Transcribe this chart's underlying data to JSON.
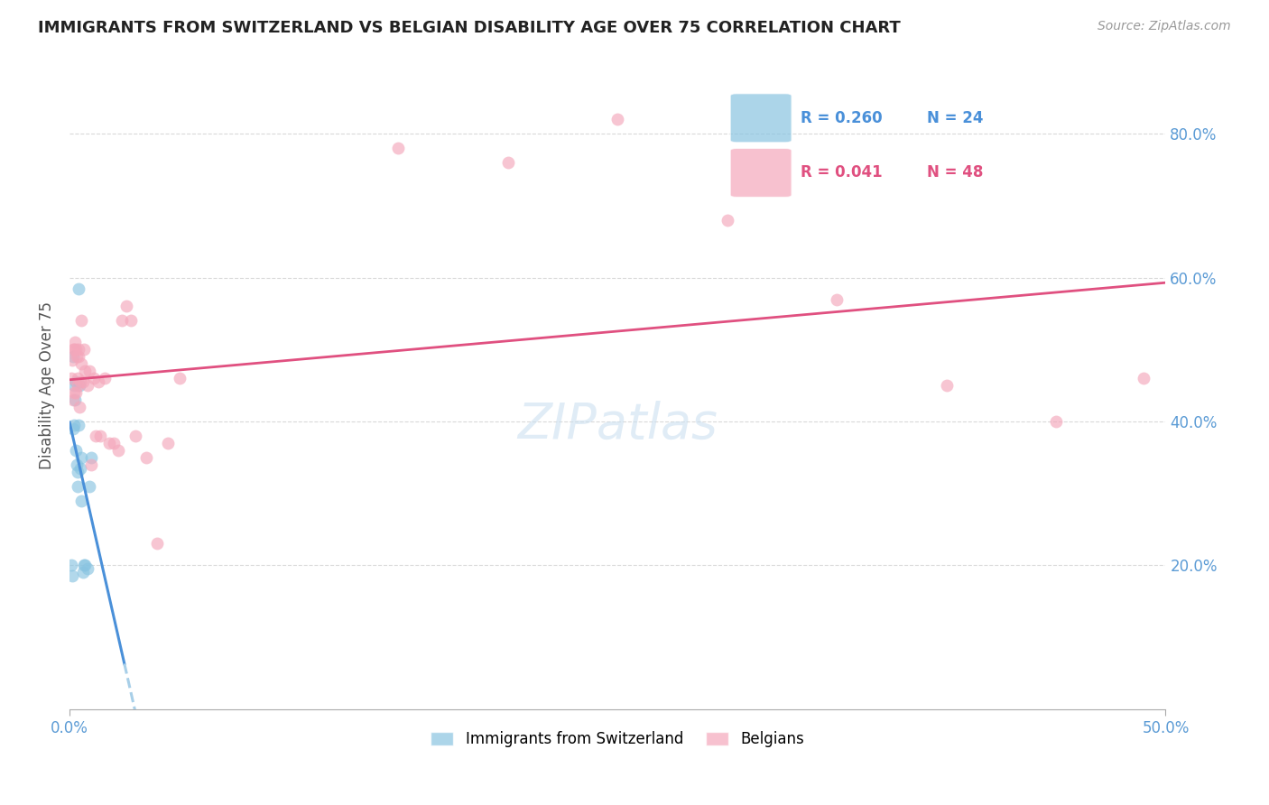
{
  "title": "IMMIGRANTS FROM SWITZERLAND VS BELGIAN DISABILITY AGE OVER 75 CORRELATION CHART",
  "source": "Source: ZipAtlas.com",
  "ylabel": "Disability Age Over 75",
  "background_color": "#ffffff",
  "grid_color": "#d0d0d0",
  "legend_r1": "0.260",
  "legend_n1": "24",
  "legend_r2": "0.041",
  "legend_n2": "48",
  "swiss_color": "#89c4e1",
  "belgian_color": "#f4a7bb",
  "swiss_line_color": "#4a90d9",
  "belgian_line_color": "#e05080",
  "swiss_dashed_color": "#a8cfe8",
  "tick_color": "#5b9bd5",
  "x_min": 0.0,
  "x_max": 0.5,
  "y_min": 0.0,
  "y_max": 0.9,
  "swiss_x": [
    0.0008,
    0.0012,
    0.0015,
    0.0018,
    0.002,
    0.0022,
    0.0025,
    0.0028,
    0.003,
    0.0032,
    0.0035,
    0.0038,
    0.004,
    0.0042,
    0.0045,
    0.0048,
    0.0052,
    0.0055,
    0.006,
    0.0065,
    0.007,
    0.008,
    0.009,
    0.01
  ],
  "swiss_y": [
    0.2,
    0.185,
    0.49,
    0.39,
    0.45,
    0.395,
    0.43,
    0.455,
    0.36,
    0.34,
    0.31,
    0.33,
    0.395,
    0.585,
    0.45,
    0.335,
    0.29,
    0.35,
    0.19,
    0.2,
    0.2,
    0.195,
    0.31,
    0.35
  ],
  "belgian_x": [
    0.0008,
    0.0012,
    0.0015,
    0.0018,
    0.002,
    0.0022,
    0.0025,
    0.0028,
    0.003,
    0.0032,
    0.0035,
    0.0038,
    0.004,
    0.0042,
    0.0045,
    0.0048,
    0.0052,
    0.0055,
    0.006,
    0.0065,
    0.007,
    0.008,
    0.009,
    0.01,
    0.011,
    0.012,
    0.013,
    0.014,
    0.016,
    0.018,
    0.02,
    0.022,
    0.024,
    0.026,
    0.028,
    0.03,
    0.035,
    0.04,
    0.045,
    0.05,
    0.15,
    0.2,
    0.25,
    0.3,
    0.35,
    0.4,
    0.45,
    0.49
  ],
  "belgian_y": [
    0.46,
    0.485,
    0.43,
    0.5,
    0.44,
    0.5,
    0.51,
    0.44,
    0.5,
    0.49,
    0.45,
    0.46,
    0.49,
    0.5,
    0.42,
    0.455,
    0.54,
    0.48,
    0.455,
    0.5,
    0.47,
    0.45,
    0.47,
    0.34,
    0.46,
    0.38,
    0.455,
    0.38,
    0.46,
    0.37,
    0.37,
    0.36,
    0.54,
    0.56,
    0.54,
    0.38,
    0.35,
    0.23,
    0.37,
    0.46,
    0.78,
    0.76,
    0.82,
    0.68,
    0.57,
    0.45,
    0.4,
    0.46
  ],
  "marker_size": 100
}
